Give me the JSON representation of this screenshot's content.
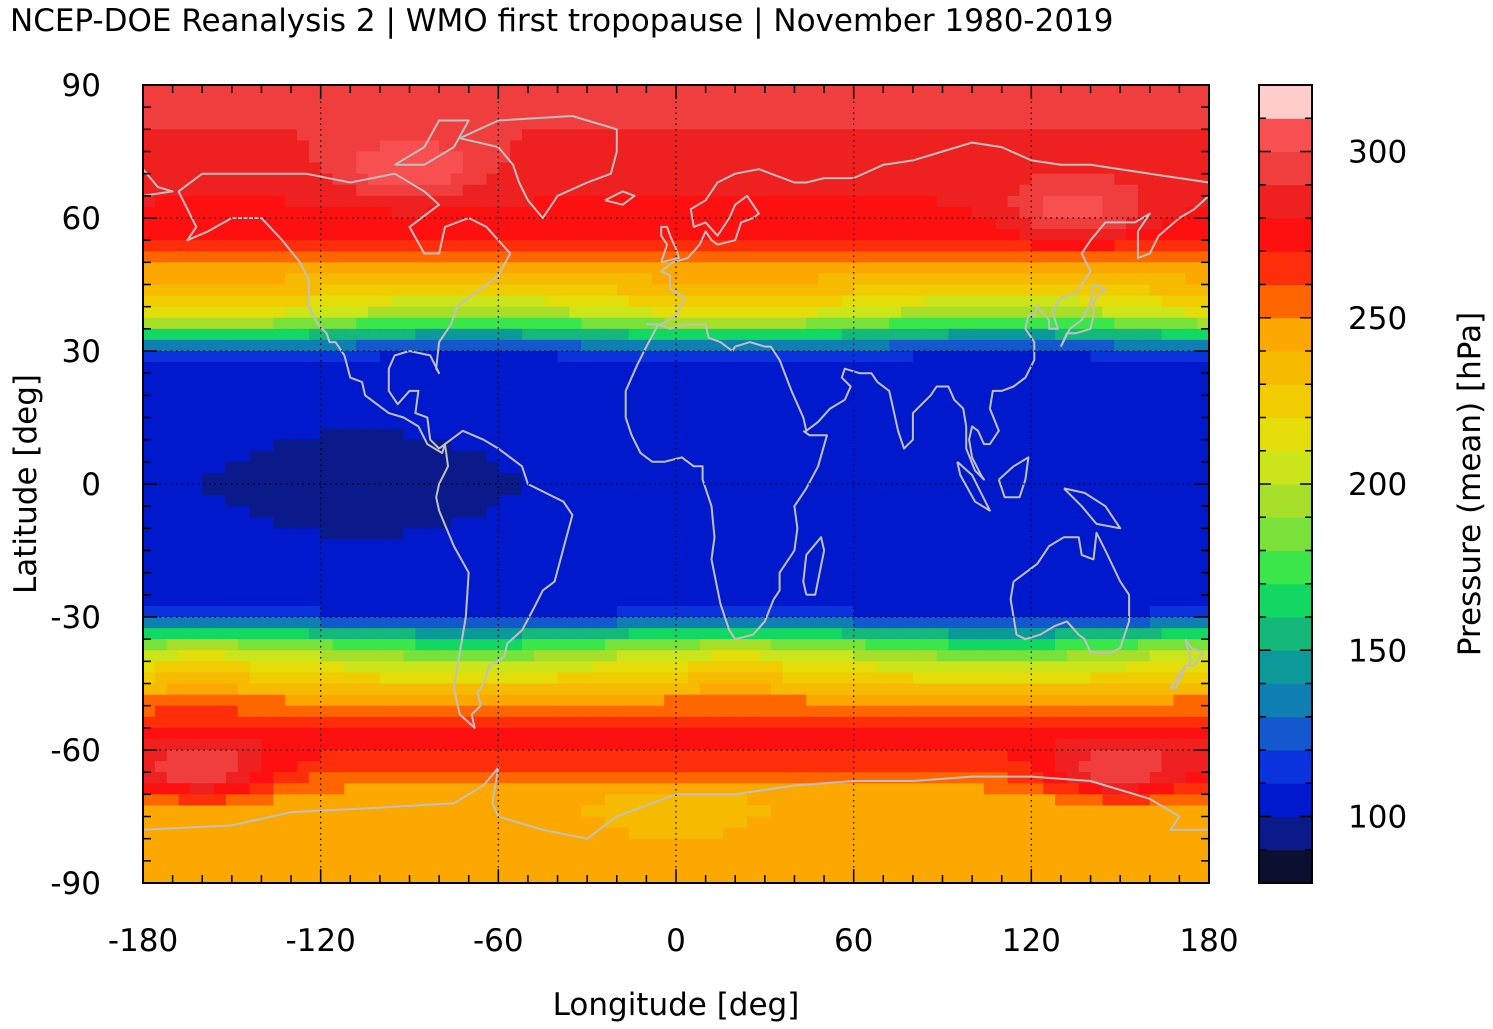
{
  "chart_data": {
    "type": "heatmap",
    "title": "NCEP-DOE Reanalysis 2 | WMO first tropopause | November 1980-2019",
    "xlabel": "Longitude [deg]",
    "ylabel": "Latitude [deg]",
    "colorbar_label": "Pressure (mean) [hPa]",
    "xlim": [
      -180,
      180
    ],
    "ylim": [
      -90,
      90
    ],
    "xticks": [
      "-180",
      "-120",
      "-60",
      "0",
      "60",
      "120",
      "180"
    ],
    "yticks": [
      "90",
      "60",
      "30",
      "0",
      "-30",
      "-60",
      "-90"
    ],
    "colorbar_range": [
      80,
      320
    ],
    "colorbar_ticks": [
      "300",
      "250",
      "200",
      "150",
      "100"
    ],
    "colorbar_levels": [
      {
        "min": 80,
        "max": 90,
        "color": "#0c1030"
      },
      {
        "min": 90,
        "max": 100,
        "color": "#0a1a8a"
      },
      {
        "min": 100,
        "max": 110,
        "color": "#0019cc"
      },
      {
        "min": 110,
        "max": 120,
        "color": "#0a33dd"
      },
      {
        "min": 120,
        "max": 130,
        "color": "#1358cc"
      },
      {
        "min": 130,
        "max": 140,
        "color": "#0f7fb3"
      },
      {
        "min": 140,
        "max": 150,
        "color": "#0b9a99"
      },
      {
        "min": 150,
        "max": 160,
        "color": "#13b87a"
      },
      {
        "min": 160,
        "max": 170,
        "color": "#12d863"
      },
      {
        "min": 170,
        "max": 180,
        "color": "#3ae64a"
      },
      {
        "min": 180,
        "max": 190,
        "color": "#78e23a"
      },
      {
        "min": 190,
        "max": 200,
        "color": "#a6de2a"
      },
      {
        "min": 200,
        "max": 210,
        "color": "#cce41a"
      },
      {
        "min": 210,
        "max": 220,
        "color": "#e5dd0a"
      },
      {
        "min": 220,
        "max": 230,
        "color": "#f0cc00"
      },
      {
        "min": 230,
        "max": 240,
        "color": "#f6bb00"
      },
      {
        "min": 240,
        "max": 250,
        "color": "#fca800"
      },
      {
        "min": 250,
        "max": 260,
        "color": "#ff6600"
      },
      {
        "min": 260,
        "max": 270,
        "color": "#ff2e0a"
      },
      {
        "min": 270,
        "max": 280,
        "color": "#ff1010"
      },
      {
        "min": 280,
        "max": 290,
        "color": "#ee2020"
      },
      {
        "min": 290,
        "max": 300,
        "color": "#f03e3e"
      },
      {
        "min": 300,
        "max": 310,
        "color": "#f85050"
      },
      {
        "min": 310,
        "max": 320,
        "color": "#ffcccc"
      }
    ],
    "zonal_mean_profile": {
      "lat": [
        -90,
        -80,
        -72,
        -65,
        -58,
        -50,
        -44,
        -38,
        -34,
        -30,
        -27,
        -20,
        0,
        20,
        27,
        30,
        34,
        38,
        44,
        50,
        56,
        62,
        70,
        80,
        90
      ],
      "pressure": [
        250,
        245,
        240,
        260,
        275,
        255,
        225,
        195,
        160,
        115,
        102,
        101,
        100,
        101,
        103,
        118,
        160,
        200,
        230,
        250,
        270,
        278,
        285,
        290,
        290
      ]
    },
    "anomalies": [
      {
        "lat": 0,
        "lon": -105,
        "pressure": 90
      },
      {
        "lat": 72,
        "lon": -90,
        "pressure": 310
      },
      {
        "lat": 62,
        "lon": 135,
        "pressure": 305
      },
      {
        "lat": -64,
        "lon": -160,
        "pressure": 300
      },
      {
        "lat": -64,
        "lon": 150,
        "pressure": 300
      },
      {
        "lat": -75,
        "lon": 0,
        "pressure": 235
      }
    ],
    "grid": true,
    "overlay": "coastlines",
    "coastline_color": "#c0c0c0"
  }
}
